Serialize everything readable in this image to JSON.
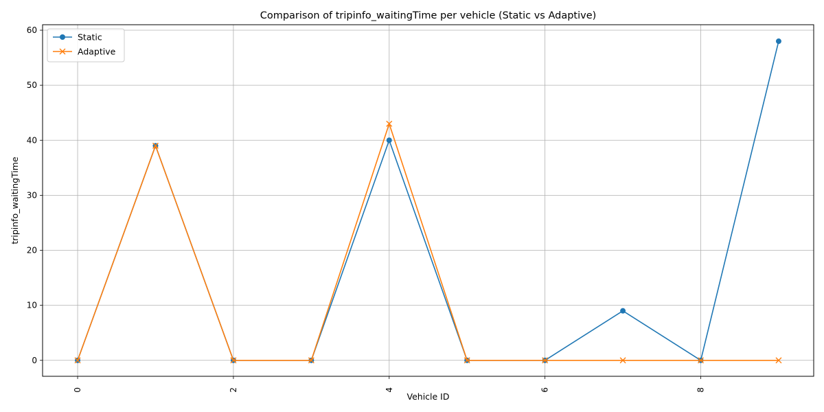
{
  "chart_data": {
    "type": "line",
    "title": "Comparison of tripinfo_waitingTime per vehicle (Static vs Adaptive)",
    "xlabel": "Vehicle ID",
    "ylabel": "tripinfo_waitingTime",
    "x": [
      0,
      1,
      2,
      3,
      4,
      5,
      6,
      7,
      8,
      9
    ],
    "xlim": [
      -0.45,
      9.45
    ],
    "ylim": [
      -2.9,
      61
    ],
    "xticks": [
      0,
      2,
      4,
      6,
      8
    ],
    "yticks": [
      0,
      10,
      20,
      30,
      40,
      50,
      60
    ],
    "xtick_rotation": 90,
    "grid": true,
    "legend_position": "top-left",
    "series": [
      {
        "name": "Static",
        "color": "#1f77b4",
        "marker": "circle",
        "values": [
          0,
          39,
          0,
          0,
          40,
          0,
          0,
          9,
          0,
          58
        ]
      },
      {
        "name": "Adaptive",
        "color": "#ff7f0e",
        "marker": "x",
        "values": [
          0,
          39,
          0,
          0,
          43,
          0,
          0,
          0,
          0,
          0
        ]
      }
    ]
  }
}
